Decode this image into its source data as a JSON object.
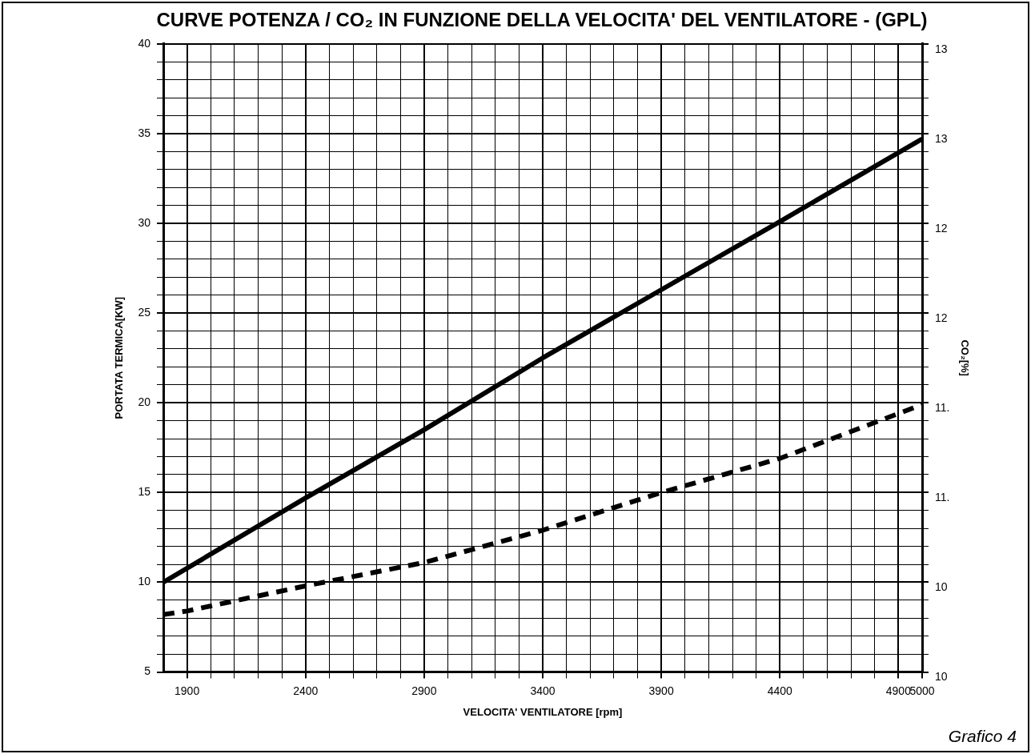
{
  "chart_data": {
    "type": "line",
    "title": "CURVE POTENZA / CO₂ IN FUNZIONE DELLA VELOCITA' DEL VENTILATORE - (GPL)",
    "xlabel": "VELOCITA' VENTILATORE [rpm]",
    "ylabel": "PORTATA TERMICA[KW]",
    "y2label": "CO₂[%]",
    "annotations": [
      "Grafico 4"
    ],
    "series": [
      {
        "color": "#000000",
        "line_style": "solid",
        "x": [
          1800,
          2400,
          2900,
          3400,
          3900,
          4400,
          5000
        ],
        "values": [
          10.0,
          14.7,
          18.5,
          22.5,
          26.3,
          30.1,
          34.7
        ]
      },
      {
        "color": "#000000",
        "line_style": "dashed",
        "axis": "y2",
        "x": [
          1800,
          1900,
          2400,
          2900,
          3400,
          3900,
          4400,
          5000
        ],
        "values": [
          9.82,
          9.84,
          9.98,
          10.11,
          10.29,
          10.5,
          10.69,
          10.99
        ]
      }
    ],
    "xlim": [
      1800,
      5000
    ],
    "xticks": [
      1900,
      {
        "value": 2000,
        "label": null
      },
      {
        "value": 2100,
        "label": null
      },
      {
        "value": 2200,
        "label": null
      },
      {
        "value": 2300,
        "label": null
      },
      2400,
      {
        "value": 2500,
        "label": null
      },
      {
        "value": 2600,
        "label": null
      },
      {
        "value": 2700,
        "label": null
      },
      {
        "value": 2800,
        "label": null
      },
      2900,
      {
        "value": 3000,
        "label": null
      },
      {
        "value": 3100,
        "label": null
      },
      {
        "value": 3200,
        "label": null
      },
      {
        "value": 3300,
        "label": null
      },
      3400,
      {
        "value": 3500,
        "label": null
      },
      {
        "value": 3600,
        "label": null
      },
      {
        "value": 3700,
        "label": null
      },
      {
        "value": 3800,
        "label": null
      },
      3900,
      {
        "value": 4000,
        "label": null
      },
      {
        "value": 4100,
        "label": null
      },
      {
        "value": 4200,
        "label": null
      },
      {
        "value": 4300,
        "label": null
      },
      4400,
      {
        "value": 4500,
        "label": null
      },
      {
        "value": 4600,
        "label": null
      },
      {
        "value": 4700,
        "label": null
      },
      {
        "value": 4800,
        "label": null
      },
      4900,
      5000
    ],
    "ylim": [
      5,
      40
    ],
    "yticks": [
      5,
      {
        "value": 6,
        "label": null
      },
      {
        "value": 7,
        "label": null
      },
      {
        "value": 8,
        "label": null
      },
      {
        "value": 9,
        "label": null
      },
      10,
      {
        "value": 11,
        "label": null
      },
      {
        "value": 12,
        "label": null
      },
      {
        "value": 13,
        "label": null
      },
      {
        "value": 14,
        "label": null
      },
      15,
      {
        "value": 16,
        "label": null
      },
      {
        "value": 17,
        "label": null
      },
      {
        "value": 18,
        "label": null
      },
      {
        "value": 19,
        "label": null
      },
      20,
      {
        "value": 21,
        "label": null
      },
      {
        "value": 22,
        "label": null
      },
      {
        "value": 23,
        "label": null
      },
      {
        "value": 24,
        "label": null
      },
      25,
      {
        "value": 26,
        "label": null
      },
      {
        "value": 27,
        "label": null
      },
      {
        "value": 28,
        "label": null
      },
      {
        "value": 29,
        "label": null
      },
      30,
      {
        "value": 31,
        "label": null
      },
      {
        "value": 32,
        "label": null
      },
      {
        "value": 33,
        "label": null
      },
      {
        "value": 34,
        "label": null
      },
      35,
      {
        "value": 36,
        "label": null
      },
      {
        "value": 37,
        "label": null
      },
      {
        "value": 38,
        "label": null
      },
      {
        "value": 39,
        "label": null
      },
      40
    ],
    "y2lim": [
      9.5,
      13
    ],
    "y2ticks": [
      {
        "value": 9.5,
        "label": "10"
      },
      {
        "value": 9.6,
        "label": null
      },
      {
        "value": 9.7,
        "label": null
      },
      {
        "value": 9.8,
        "label": null
      },
      {
        "value": 9.9,
        "label": null
      },
      {
        "value": 10,
        "label": "10"
      },
      {
        "value": 10.1,
        "label": null
      },
      {
        "value": 10.2,
        "label": null
      },
      {
        "value": 10.3,
        "label": null
      },
      {
        "value": 10.4,
        "label": null
      },
      {
        "value": 10.5,
        "label": "11."
      },
      {
        "value": 10.6,
        "label": null
      },
      {
        "value": 10.7,
        "label": null
      },
      {
        "value": 10.8,
        "label": null
      },
      {
        "value": 10.9,
        "label": null
      },
      {
        "value": 11,
        "label": "11."
      },
      {
        "value": 11.1,
        "label": null
      },
      {
        "value": 11.2,
        "label": null
      },
      {
        "value": 11.3,
        "label": null
      },
      {
        "value": 11.4,
        "label": null
      },
      {
        "value": 11.5,
        "label": "12"
      },
      {
        "value": 11.6,
        "label": null
      },
      {
        "value": 11.7,
        "label": null
      },
      {
        "value": 11.8,
        "label": null
      },
      {
        "value": 11.9,
        "label": null
      },
      {
        "value": 12,
        "label": "12"
      },
      {
        "value": 12.1,
        "label": null
      },
      {
        "value": 12.2,
        "label": null
      },
      {
        "value": 12.3,
        "label": null
      },
      {
        "value": 12.4,
        "label": null
      },
      {
        "value": 12.5,
        "label": "13"
      },
      {
        "value": 12.6,
        "label": null
      },
      {
        "value": 12.7,
        "label": null
      },
      {
        "value": 12.8,
        "label": null
      },
      {
        "value": 12.9,
        "label": null
      },
      {
        "value": 13,
        "label": "13"
      }
    ],
    "grid": true,
    "legend": false,
    "marker": "none"
  }
}
